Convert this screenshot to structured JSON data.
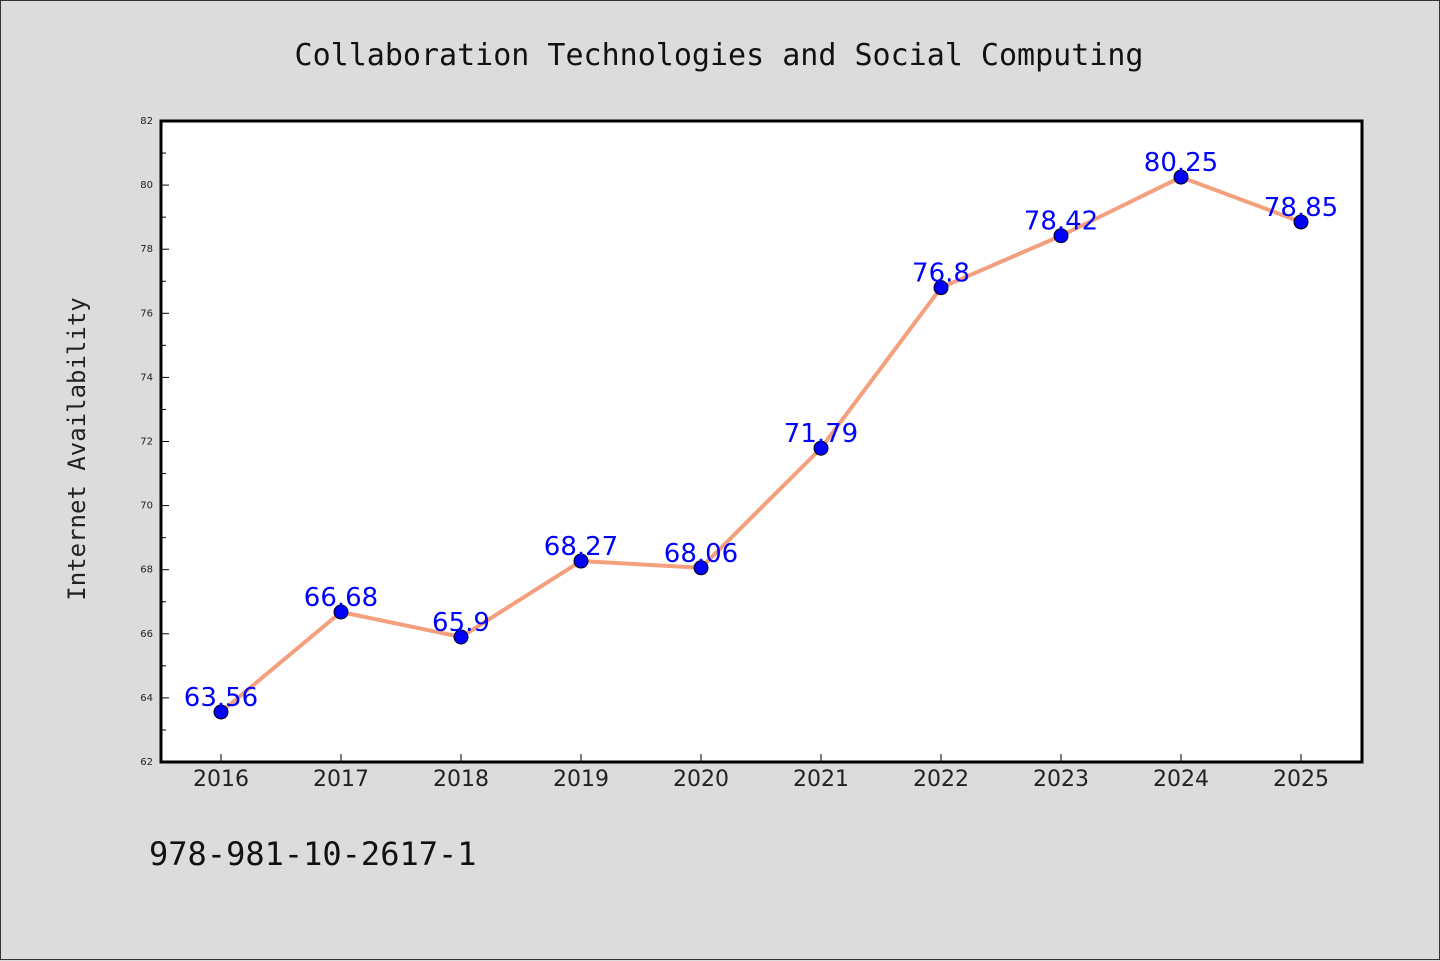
{
  "chart_data": {
    "type": "line",
    "title": "Collaboration Technologies and Social Computing",
    "xlabel": "",
    "ylabel": "Internet Availability",
    "categories": [
      "2016",
      "2017",
      "2018",
      "2019",
      "2020",
      "2021",
      "2022",
      "2023",
      "2024",
      "2025"
    ],
    "series": [
      {
        "values": [
          63.56,
          66.68,
          65.9,
          68.27,
          68.06,
          71.79,
          76.8,
          78.42,
          80.25,
          78.85
        ],
        "labels": [
          "63.56",
          "66.68",
          "65.9",
          "68.27",
          "68.06",
          "71.79",
          "76.8",
          "78.42",
          "80.25",
          "78.85"
        ],
        "line_color": "#f4a07e",
        "marker_color": "#0000ff",
        "label_color": "#0000ff"
      }
    ],
    "ylim": [
      62,
      82
    ],
    "yticks": [
      "62",
      "64",
      "66",
      "68",
      "70",
      "72",
      "74",
      "76",
      "78",
      "80",
      "82"
    ],
    "grid": false
  },
  "footer_text": "978-981-10-2617-1",
  "colors": {
    "background": "#dcdcdc",
    "plot_background": "#ffffff"
  }
}
